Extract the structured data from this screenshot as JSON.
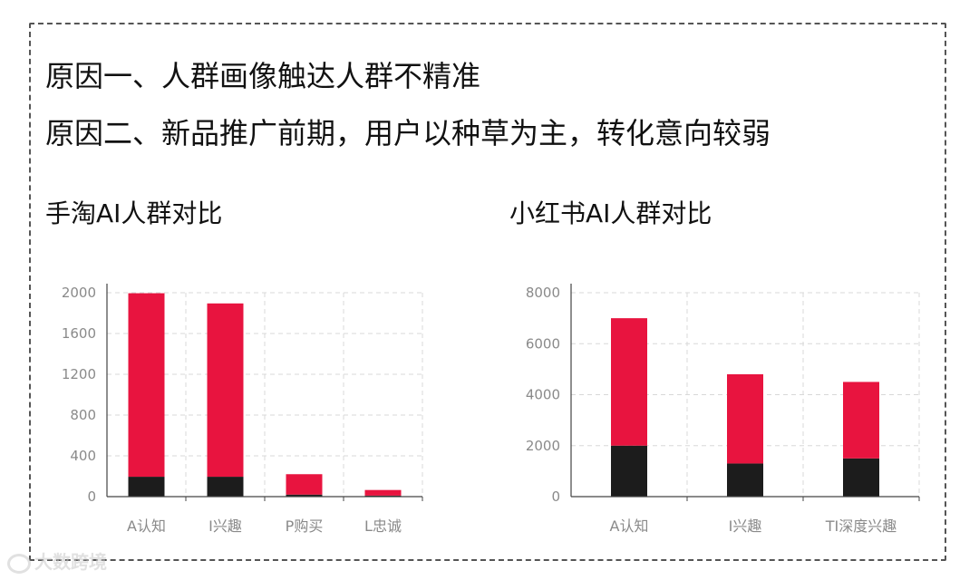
{
  "reasons": [
    "原因一、人群画像触达人群不精准",
    "原因二、新品推广前期，用户以种草为主，转化意向较弱"
  ],
  "watermark": "大数跨境",
  "colors": {
    "top_segment": "#e8143f",
    "bottom_segment": "#1c1c1c",
    "axis": "#444444",
    "grid": "#d8d8d8",
    "tick_text": "#8a8a8a"
  },
  "chart_data": [
    {
      "type": "bar",
      "stacked": true,
      "title": "手淘AI人群对比",
      "categories": [
        "A认知",
        "I兴趣",
        "P购买",
        "L忠诚"
      ],
      "series": [
        {
          "values": [
            195,
            195,
            20,
            10
          ]
        },
        {
          "values": [
            1800,
            1700,
            200,
            55
          ]
        }
      ],
      "totals": [
        1995,
        1895,
        220,
        65
      ],
      "ylim": [
        0,
        2000
      ],
      "yticks": [
        0,
        400,
        800,
        1200,
        1600,
        2000
      ],
      "grid": true,
      "xlabel": "",
      "ylabel": ""
    },
    {
      "type": "bar",
      "stacked": true,
      "title": "小红书AI人群对比",
      "categories": [
        "A认知",
        "I兴趣",
        "TI深度兴趣"
      ],
      "series": [
        {
          "values": [
            2000,
            1300,
            1500
          ]
        },
        {
          "values": [
            5000,
            3500,
            3000
          ]
        }
      ],
      "totals": [
        7000,
        4800,
        4500
      ],
      "ylim": [
        0,
        8000
      ],
      "yticks": [
        0,
        2000,
        4000,
        6000,
        8000
      ],
      "grid": true,
      "xlabel": "",
      "ylabel": ""
    }
  ]
}
